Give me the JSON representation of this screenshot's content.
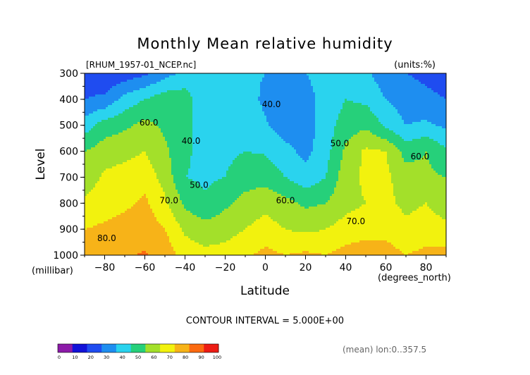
{
  "chart_data": {
    "type": "heatmap",
    "title": "Monthly Mean relative humidity",
    "source_label": "[RHUM_1957-01_NCEP.nc]",
    "units_label": "(units:%)",
    "xlabel": "Latitude",
    "xunit_label": "(degrees_north)",
    "ylabel": "Level",
    "yunit_label": "(millibar)",
    "xlim": [
      -90,
      90
    ],
    "ylim": [
      1000,
      300
    ],
    "x_ticks": [
      -80,
      -60,
      -40,
      -20,
      0,
      20,
      40,
      60,
      80
    ],
    "y_ticks": [
      300,
      400,
      500,
      600,
      700,
      800,
      900,
      1000
    ],
    "x_tick_labels": [
      "−80",
      "−60",
      "−40",
      "−20",
      "0",
      "20",
      "40",
      "60",
      "80"
    ],
    "y_tick_labels": [
      "300",
      "400",
      "500",
      "600",
      "700",
      "800",
      "900",
      "1000"
    ],
    "contour_interval_text": "CONTOUR INTERVAL = 5.000E+00",
    "mean_text": "(mean) lon:0..357.5",
    "contour_labels": [
      {
        "text": "40.0",
        "lat": 3,
        "level": 420
      },
      {
        "text": "60.0",
        "lat": -58,
        "level": 490
      },
      {
        "text": "40.0",
        "lat": -37,
        "level": 560
      },
      {
        "text": "50.0",
        "lat": 37,
        "level": 570
      },
      {
        "text": "60.0",
        "lat": 77,
        "level": 620
      },
      {
        "text": "50.0",
        "lat": -33,
        "level": 730
      },
      {
        "text": "70.0",
        "lat": -48,
        "level": 790
      },
      {
        "text": "60.0",
        "lat": 10,
        "level": 790
      },
      {
        "text": "70.0",
        "lat": 45,
        "level": 870
      },
      {
        "text": "80.0",
        "lat": -79,
        "level": 935
      }
    ],
    "colorbar": {
      "boundaries": [
        "0",
        "10",
        "20",
        "30",
        "40",
        "50",
        "60",
        "70",
        "80",
        "90",
        "100"
      ],
      "colors": [
        "#8c1aa8",
        "#1212d8",
        "#1f4cf0",
        "#1e8ef0",
        "#2ad3ee",
        "#26d07a",
        "#a3e02a",
        "#f2f20e",
        "#f7b318",
        "#fb6a10",
        "#ed1c14"
      ]
    },
    "levels": [
      300,
      400,
      500,
      600,
      700,
      800,
      900,
      1000
    ],
    "lats": [
      -90,
      -80,
      -70,
      -60,
      -50,
      -40,
      -30,
      -20,
      -10,
      0,
      10,
      20,
      30,
      40,
      50,
      60,
      70,
      80,
      90
    ],
    "values": [
      [
        25,
        22,
        24,
        28,
        36,
        43,
        45,
        44,
        42,
        40,
        38,
        40,
        42,
        43,
        42,
        34,
        30,
        28,
        26
      ],
      [
        30,
        32,
        44,
        50,
        56,
        55,
        42,
        40,
        44,
        38,
        36,
        38,
        42,
        50,
        48,
        40,
        35,
        32,
        30
      ],
      [
        45,
        55,
        58,
        63,
        58,
        55,
        43,
        44,
        47,
        41,
        35,
        35,
        45,
        55,
        58,
        48,
        40,
        42,
        38
      ],
      [
        60,
        65,
        67,
        70,
        62,
        52,
        46,
        48,
        50,
        49,
        43,
        37,
        46,
        62,
        72,
        70,
        56,
        60,
        52
      ],
      [
        64,
        72,
        74,
        76,
        66,
        50,
        48,
        50,
        55,
        56,
        50,
        44,
        50,
        66,
        72,
        72,
        65,
        62,
        60
      ],
      [
        72,
        75,
        78,
        82,
        72,
        58,
        52,
        58,
        64,
        67,
        63,
        58,
        60,
        67,
        70,
        72,
        68,
        70,
        66
      ],
      [
        80,
        82,
        84,
        86,
        80,
        68,
        64,
        66,
        70,
        74,
        70,
        68,
        70,
        74,
        76,
        76,
        72,
        74,
        72
      ],
      [
        85,
        86,
        89,
        91,
        86,
        76,
        73,
        74,
        78,
        83,
        80,
        82,
        80,
        84,
        86,
        85,
        80,
        83,
        84
      ]
    ]
  }
}
